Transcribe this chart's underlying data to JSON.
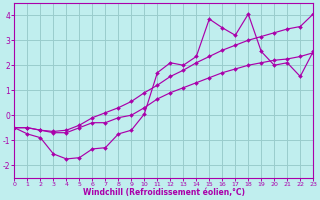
{
  "xlabel": "Windchill (Refroidissement éolien,°C)",
  "xlim": [
    0,
    23
  ],
  "ylim": [
    -2.5,
    4.5
  ],
  "yticks": [
    -2,
    -1,
    0,
    1,
    2,
    3,
    4
  ],
  "xticks": [
    0,
    1,
    2,
    3,
    4,
    5,
    6,
    7,
    8,
    9,
    10,
    11,
    12,
    13,
    14,
    15,
    16,
    17,
    18,
    19,
    20,
    21,
    22,
    23
  ],
  "background_color": "#c0eeee",
  "line_color": "#aa00aa",
  "grid_color": "#99cccc",
  "line1_x": [
    0,
    1,
    2,
    3,
    4,
    5,
    6,
    7,
    8,
    9,
    10,
    11,
    12,
    13,
    14,
    15,
    16,
    17,
    18,
    19,
    20,
    21,
    22,
    23
  ],
  "line1_y": [
    -0.5,
    -0.75,
    -0.9,
    -1.55,
    -1.75,
    -1.7,
    -1.35,
    -1.3,
    -0.75,
    -0.6,
    0.05,
    1.7,
    2.1,
    2.0,
    2.35,
    3.85,
    3.5,
    3.2,
    4.05,
    2.55,
    2.0,
    2.1,
    1.55,
    2.55
  ],
  "line2_x": [
    0,
    1,
    2,
    3,
    4,
    5,
    6,
    7,
    8,
    9,
    10,
    11,
    12,
    13,
    14,
    15,
    16,
    17,
    18,
    19,
    20,
    21,
    22,
    23
  ],
  "line2_y": [
    -0.5,
    -0.5,
    -0.6,
    -0.7,
    -0.7,
    -0.5,
    -0.3,
    -0.3,
    -0.1,
    0.0,
    0.3,
    0.65,
    0.9,
    1.1,
    1.3,
    1.5,
    1.7,
    1.85,
    2.0,
    2.1,
    2.2,
    2.25,
    2.35,
    2.5
  ],
  "line3_x": [
    0,
    1,
    2,
    3,
    4,
    5,
    6,
    7,
    8,
    9,
    10,
    11,
    12,
    13,
    14,
    15,
    16,
    17,
    18,
    19,
    20,
    21,
    22,
    23
  ],
  "line3_y": [
    -0.5,
    -0.5,
    -0.6,
    -0.65,
    -0.6,
    -0.4,
    -0.1,
    0.1,
    0.3,
    0.55,
    0.9,
    1.2,
    1.55,
    1.8,
    2.1,
    2.35,
    2.6,
    2.8,
    3.0,
    3.15,
    3.3,
    3.45,
    3.55,
    4.05
  ]
}
